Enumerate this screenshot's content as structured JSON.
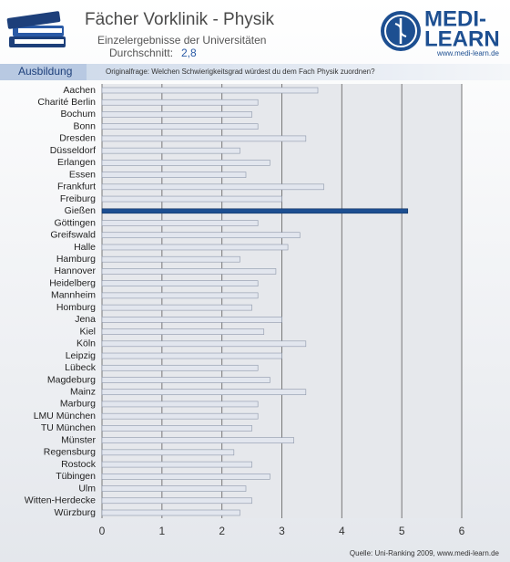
{
  "chart_data": {
    "type": "barh",
    "title": "Fächer Vorklinik - Physik",
    "subtitle": "Einzelergebnisse der Universitäten",
    "average_label": "Durchschnitt:",
    "average_value": "2,8",
    "section": "Ausbildung",
    "question": "Originalfrage: Welchen Schwierigkeitsgrad würdest du dem Fach Physik zuordnen?",
    "logo_top": "MEDI-",
    "logo_bottom": "LEARN",
    "logo_url": "www.medi-learn.de",
    "source": "Quelle: Uni-Ranking 2009, www.medi-learn.de",
    "categories": [
      "Aachen",
      "Charité Berlin",
      "Bochum",
      "Bonn",
      "Dresden",
      "Düsseldorf",
      "Erlangen",
      "Essen",
      "Frankfurt",
      "Freiburg",
      "Gießen",
      "Göttingen",
      "Greifswald",
      "Halle",
      "Hamburg",
      "Hannover",
      "Heidelberg",
      "Mannheim",
      "Homburg",
      "Jena",
      "Kiel",
      "Köln",
      "Leipzig",
      "Lübeck",
      "Magdeburg",
      "Mainz",
      "Marburg",
      "LMU München",
      "TU München",
      "Münster",
      "Regensburg",
      "Rostock",
      "Tübingen",
      "Ulm",
      "Witten-Herdecke",
      "Würzburg"
    ],
    "values": [
      3.6,
      2.6,
      2.5,
      2.6,
      3.4,
      2.3,
      2.8,
      2.4,
      3.7,
      3.0,
      5.1,
      2.6,
      3.3,
      3.1,
      2.3,
      2.9,
      2.6,
      2.6,
      2.5,
      3.0,
      2.7,
      3.4,
      3.0,
      2.6,
      2.8,
      3.4,
      2.6,
      2.6,
      2.5,
      3.2,
      2.2,
      2.5,
      2.8,
      2.4,
      2.5,
      2.3
    ],
    "colors": [
      "#e2e6ee",
      "#e2e6ee",
      "#e2e6ee",
      "#e2e6ee",
      "#e2e6ee",
      "#e2e6ee",
      "#e2e6ee",
      "#e2e6ee",
      "#e2e6ee",
      "#e2e6ee",
      "#1d4f91",
      "#e2e6ee",
      "#e2e6ee",
      "#e2e6ee",
      "#e2e6ee",
      "#e2e6ee",
      "#e2e6ee",
      "#e2e6ee",
      "#e2e6ee",
      "#e2e6ee",
      "#e2e6ee",
      "#e2e6ee",
      "#e2e6ee",
      "#e2e6ee",
      "#e2e6ee",
      "#e2e6ee",
      "#e2e6ee",
      "#e2e6ee",
      "#e2e6ee",
      "#e2e6ee",
      "#e2e6ee",
      "#e2e6ee",
      "#e2e6ee",
      "#e2e6ee",
      "#e2e6ee",
      "#e2e6ee"
    ],
    "xlim": [
      0,
      6
    ],
    "xticks": [
      0,
      1,
      2,
      3,
      4,
      5,
      6
    ],
    "grid": true
  }
}
